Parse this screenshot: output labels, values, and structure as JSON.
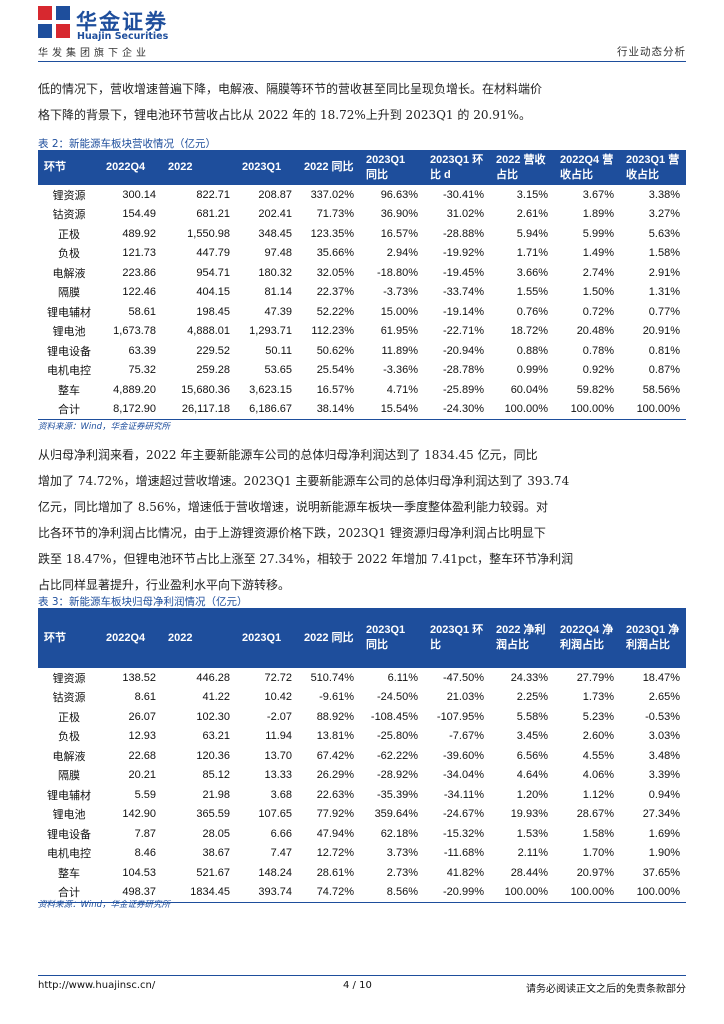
{
  "header": {
    "brand_cn": "华金证券",
    "brand_en": "Huajin Securities",
    "tagline": "华发集团旗下企业",
    "section": "行业动态分析"
  },
  "paragraph1": [
    "低的情况下，营收增速普遍下降，电解液、隔膜等环节的营收甚至同比呈现负增长。在材料端价",
    "格下降的背景下，锂电池环节营收占比从 2022 年的 18.72%上升到 2023Q1 的 20.91%。"
  ],
  "table1": {
    "caption": "表 2：新能源车板块营收情况（亿元）",
    "headers": [
      "环节",
      "2022Q4",
      "2022",
      "2023Q1",
      "2022 同比",
      "2023Q1 同比",
      "2023Q1 环比 d",
      "2022 营收占比",
      "2022Q4 营收占比",
      "2023Q1 营收占比"
    ],
    "rows": [
      [
        "锂资源",
        "300.14",
        "822.71",
        "208.87",
        "337.02%",
        "96.63%",
        "-30.41%",
        "3.15%",
        "3.67%",
        "3.38%"
      ],
      [
        "钴资源",
        "154.49",
        "681.21",
        "202.41",
        "71.73%",
        "36.90%",
        "31.02%",
        "2.61%",
        "1.89%",
        "3.27%"
      ],
      [
        "正极",
        "489.92",
        "1,550.98",
        "348.45",
        "123.35%",
        "16.57%",
        "-28.88%",
        "5.94%",
        "5.99%",
        "5.63%"
      ],
      [
        "负极",
        "121.73",
        "447.79",
        "97.48",
        "35.66%",
        "2.94%",
        "-19.92%",
        "1.71%",
        "1.49%",
        "1.58%"
      ],
      [
        "电解液",
        "223.86",
        "954.71",
        "180.32",
        "32.05%",
        "-18.80%",
        "-19.45%",
        "3.66%",
        "2.74%",
        "2.91%"
      ],
      [
        "隔膜",
        "122.46",
        "404.15",
        "81.14",
        "22.37%",
        "-3.73%",
        "-33.74%",
        "1.55%",
        "1.50%",
        "1.31%"
      ],
      [
        "锂电辅材",
        "58.61",
        "198.45",
        "47.39",
        "52.22%",
        "15.00%",
        "-19.14%",
        "0.76%",
        "0.72%",
        "0.77%"
      ],
      [
        "锂电池",
        "1,673.78",
        "4,888.01",
        "1,293.71",
        "112.23%",
        "61.95%",
        "-22.71%",
        "18.72%",
        "20.48%",
        "20.91%"
      ],
      [
        "锂电设备",
        "63.39",
        "229.52",
        "50.11",
        "50.62%",
        "11.89%",
        "-20.94%",
        "0.88%",
        "0.78%",
        "0.81%"
      ],
      [
        "电机电控",
        "75.32",
        "259.28",
        "53.65",
        "25.54%",
        "-3.36%",
        "-28.78%",
        "0.99%",
        "0.92%",
        "0.87%"
      ],
      [
        "整车",
        "4,889.20",
        "15,680.36",
        "3,623.15",
        "16.57%",
        "4.71%",
        "-25.89%",
        "60.04%",
        "59.82%",
        "58.56%"
      ],
      [
        "合计",
        "8,172.90",
        "26,117.18",
        "6,186.67",
        "38.14%",
        "15.54%",
        "-24.30%",
        "100.00%",
        "100.00%",
        "100.00%"
      ]
    ],
    "source": "资料来源：Wind，华金证券研究所"
  },
  "paragraph2": [
    "从归母净利润来看，2022 年主要新能源车公司的总体归母净利润达到了 1834.45 亿元，同比",
    "增加了 74.72%，增速超过营收增速。2023Q1 主要新能源车公司的总体归母净利润达到了 393.74",
    "亿元，同比增加了 8.56%，增速低于营收增速，说明新能源车板块一季度整体盈利能力较弱。对",
    "比各环节的净利润占比情况，由于上游锂资源价格下跌，2023Q1 锂资源归母净利润占比明显下",
    "跌至 18.47%，但锂电池环节占比上涨至 27.34%，相较于 2022 年增加 7.41pct，整车环节净利润",
    "占比同样显著提升，行业盈利水平向下游转移。"
  ],
  "table2": {
    "caption": "表 3：新能源车板块归母净利润情况（亿元）",
    "headers": [
      "环节",
      "2022Q4",
      "2022",
      "2023Q1",
      "2022 同比",
      "2023Q1 同比",
      "2023Q1 环比",
      "2022 净利润占比",
      "2022Q4 净利润占比",
      "2023Q1 净利润占比"
    ],
    "rows": [
      [
        "锂资源",
        "138.52",
        "446.28",
        "72.72",
        "510.74%",
        "6.11%",
        "-47.50%",
        "24.33%",
        "27.79%",
        "18.47%"
      ],
      [
        "钴资源",
        "8.61",
        "41.22",
        "10.42",
        "-9.61%",
        "-24.50%",
        "21.03%",
        "2.25%",
        "1.73%",
        "2.65%"
      ],
      [
        "正极",
        "26.07",
        "102.30",
        "-2.07",
        "88.92%",
        "-108.45%",
        "-107.95%",
        "5.58%",
        "5.23%",
        "-0.53%"
      ],
      [
        "负极",
        "12.93",
        "63.21",
        "11.94",
        "13.81%",
        "-25.80%",
        "-7.67%",
        "3.45%",
        "2.60%",
        "3.03%"
      ],
      [
        "电解液",
        "22.68",
        "120.36",
        "13.70",
        "67.42%",
        "-62.22%",
        "-39.60%",
        "6.56%",
        "4.55%",
        "3.48%"
      ],
      [
        "隔膜",
        "20.21",
        "85.12",
        "13.33",
        "26.29%",
        "-28.92%",
        "-34.04%",
        "4.64%",
        "4.06%",
        "3.39%"
      ],
      [
        "锂电辅材",
        "5.59",
        "21.98",
        "3.68",
        "22.63%",
        "-35.39%",
        "-34.11%",
        "1.20%",
        "1.12%",
        "0.94%"
      ],
      [
        "锂电池",
        "142.90",
        "365.59",
        "107.65",
        "77.92%",
        "359.64%",
        "-24.67%",
        "19.93%",
        "28.67%",
        "27.34%"
      ],
      [
        "锂电设备",
        "7.87",
        "28.05",
        "6.66",
        "47.94%",
        "62.18%",
        "-15.32%",
        "1.53%",
        "1.58%",
        "1.69%"
      ],
      [
        "电机电控",
        "8.46",
        "38.67",
        "7.47",
        "12.72%",
        "3.73%",
        "-11.68%",
        "2.11%",
        "1.70%",
        "1.90%"
      ],
      [
        "整车",
        "104.53",
        "521.67",
        "148.24",
        "28.61%",
        "2.73%",
        "41.82%",
        "28.44%",
        "20.97%",
        "37.65%"
      ],
      [
        "合计",
        "498.37",
        "1834.45",
        "393.74",
        "74.72%",
        "8.56%",
        "-20.99%",
        "100.00%",
        "100.00%",
        "100.00%"
      ]
    ],
    "source": "资料来源：Wind，华金证券研究所"
  },
  "footer": {
    "url": "http://www.huajinsc.cn/",
    "page": "4 / 10",
    "note": "请务必阅读正文之后的免责条款部分"
  },
  "colors": {
    "brand_blue": "#1e4e9c",
    "logo_red": "#d7282f"
  }
}
